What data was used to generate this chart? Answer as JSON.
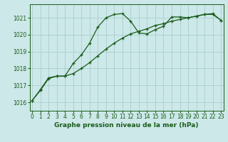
{
  "title": "Graphe pression niveau de la mer (hPa)",
  "background_color": "#cce8e8",
  "grid_color": "#aacece",
  "line_color": "#1a5c1a",
  "x_ticks": [
    0,
    1,
    2,
    3,
    4,
    5,
    6,
    7,
    8,
    9,
    10,
    11,
    12,
    13,
    14,
    15,
    16,
    17,
    18,
    19,
    20,
    21,
    22,
    23
  ],
  "y_ticks": [
    1016,
    1017,
    1018,
    1019,
    1020,
    1021
  ],
  "ylim": [
    1015.5,
    1021.8
  ],
  "xlim": [
    -0.3,
    23.3
  ],
  "series1_x": [
    0,
    1,
    2,
    3,
    4,
    5,
    6,
    7,
    8,
    9,
    10,
    11,
    12,
    13,
    14,
    15,
    16,
    17,
    18,
    19,
    20,
    21,
    22,
    23
  ],
  "series1_y": [
    1016.1,
    1016.7,
    1017.4,
    1017.55,
    1017.55,
    1018.3,
    1018.8,
    1019.5,
    1020.45,
    1021.0,
    1021.2,
    1021.25,
    1020.8,
    1020.1,
    1020.05,
    1020.3,
    1020.5,
    1021.05,
    1021.05,
    1021.0,
    1021.1,
    1021.2,
    1021.2,
    1020.85
  ],
  "series2_x": [
    0,
    1,
    2,
    3,
    4,
    5,
    6,
    7,
    8,
    9,
    10,
    11,
    12,
    13,
    14,
    15,
    16,
    17,
    18,
    19,
    20,
    21,
    22,
    23
  ],
  "series2_y": [
    1016.1,
    1016.75,
    1017.45,
    1017.55,
    1017.55,
    1017.7,
    1018.0,
    1018.35,
    1018.75,
    1019.15,
    1019.5,
    1019.8,
    1020.05,
    1020.2,
    1020.35,
    1020.55,
    1020.65,
    1020.8,
    1020.9,
    1021.0,
    1021.1,
    1021.2,
    1021.25,
    1020.85
  ],
  "title_fontsize": 6.5,
  "tick_fontsize": 5.5,
  "linewidth": 0.9,
  "markersize": 3.0
}
